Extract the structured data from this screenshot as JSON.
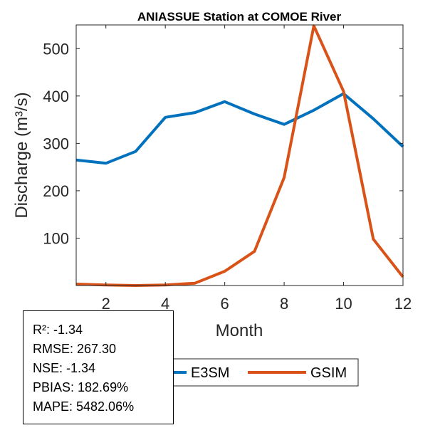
{
  "chart_data": {
    "type": "line",
    "title": "ANIASSUE  Station at  COMOE  River",
    "xlabel": "Month",
    "ylabel": "Discharge (m³/s)",
    "xlim": [
      1,
      12
    ],
    "ylim": [
      0,
      550
    ],
    "xticks": [
      2,
      4,
      6,
      8,
      10,
      12
    ],
    "yticks": [
      100,
      200,
      300,
      400,
      500
    ],
    "grid": false,
    "x": [
      1,
      2,
      3,
      4,
      5,
      6,
      7,
      8,
      9,
      10,
      11,
      12
    ],
    "series": [
      {
        "name": "E3SM",
        "color": "#0072BD",
        "values": [
          265,
          258,
          283,
          355,
          365,
          388,
          362,
          340,
          370,
          405,
          352,
          293
        ]
      },
      {
        "name": "GSIM",
        "color": "#D95319",
        "values": [
          3,
          1,
          0,
          1,
          5,
          30,
          72,
          228,
          548,
          410,
          98,
          18
        ]
      }
    ],
    "legend": {
      "placement": "bottom-center",
      "entries": [
        "E3SM",
        "GSIM"
      ]
    },
    "annotations": {
      "r2": "R²: -1.34",
      "rmse": "RMSE: 267.30",
      "nse": "NSE: -1.34",
      "pbias": "PBIAS: 182.69%",
      "mape": "MAPE: 5482.06%"
    }
  }
}
